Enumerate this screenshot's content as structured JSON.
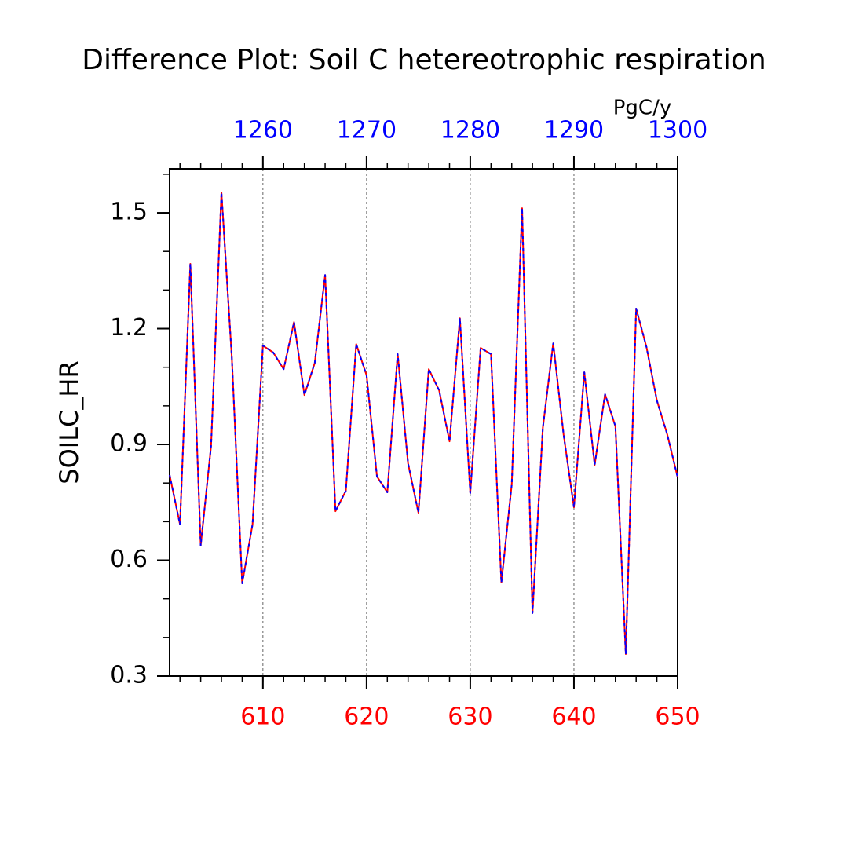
{
  "chart_data": {
    "type": "line",
    "title": "Difference Plot: Soil C hetereotrophic respiration",
    "units": "PgC/y",
    "y_label": "SOILC_HR",
    "x": [
      601,
      602,
      603,
      604,
      605,
      606,
      607,
      608,
      609,
      610,
      611,
      612,
      613,
      614,
      615,
      616,
      617,
      618,
      619,
      620,
      621,
      622,
      623,
      624,
      625,
      626,
      627,
      628,
      629,
      630,
      631,
      632,
      633,
      634,
      635,
      636,
      637,
      638,
      639,
      640,
      641,
      642,
      643,
      644,
      645,
      646,
      647,
      648,
      649,
      650
    ],
    "series": [
      {
        "color": "#ff0000",
        "values": [
          0.821,
          0.693,
          1.368,
          0.638,
          0.896,
          1.553,
          1.126,
          0.54,
          0.693,
          1.156,
          1.138,
          1.095,
          1.217,
          1.028,
          1.111,
          1.339,
          0.727,
          0.78,
          1.16,
          1.079,
          0.817,
          0.776,
          1.134,
          0.851,
          0.723,
          1.095,
          1.04,
          0.908,
          1.227,
          0.774,
          1.15,
          1.134,
          0.542,
          0.796,
          1.512,
          0.463,
          0.943,
          1.162,
          0.926,
          0.737,
          1.087,
          0.847,
          1.03,
          0.947,
          0.357,
          1.252,
          1.152,
          1.014,
          0.926,
          0.815
        ]
      },
      {
        "color": "#0000ff",
        "dashed": true,
        "values": [
          0.821,
          0.693,
          1.368,
          0.638,
          0.896,
          1.553,
          1.126,
          0.54,
          0.693,
          1.156,
          1.138,
          1.095,
          1.217,
          1.028,
          1.111,
          1.339,
          0.727,
          0.78,
          1.16,
          1.079,
          0.817,
          0.776,
          1.134,
          0.851,
          0.723,
          1.095,
          1.04,
          0.908,
          1.227,
          0.774,
          1.15,
          1.134,
          0.542,
          0.796,
          1.512,
          0.463,
          0.943,
          1.162,
          0.926,
          0.737,
          1.087,
          0.847,
          1.03,
          0.947,
          0.357,
          1.252,
          1.152,
          1.014,
          0.926,
          0.815
        ]
      }
    ],
    "xlim": [
      601,
      650
    ],
    "xticks": [
      610,
      620,
      630,
      640,
      650
    ],
    "xtick_color": "#ff0000",
    "x2lim": [
      1251,
      1300
    ],
    "x2ticks": [
      1260,
      1270,
      1280,
      1290,
      1300
    ],
    "x2tick_color": "#0000ff",
    "ylim": [
      0.3,
      1.614
    ],
    "yticks": [
      0.3,
      0.6,
      0.9,
      1.2,
      1.5
    ],
    "grid": true
  }
}
